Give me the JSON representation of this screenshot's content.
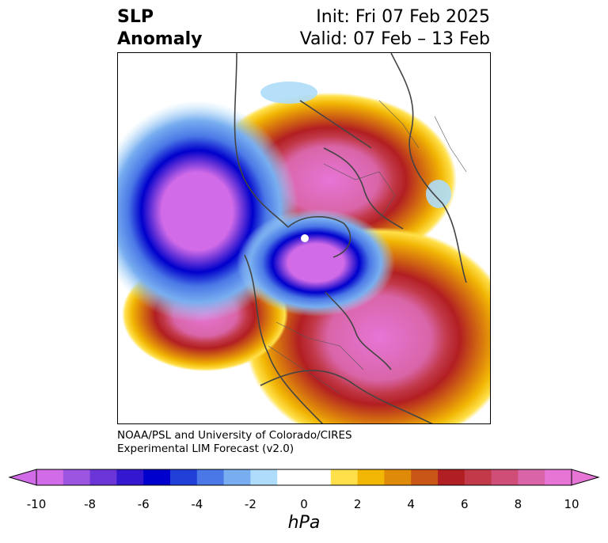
{
  "title": {
    "left_line1": "SLP",
    "left_line2": "Anomaly",
    "right_line1": "Init: Fri 07 Feb 2025",
    "right_line2": "Valid: 07 Feb – 13 Feb"
  },
  "credit": {
    "line1": "NOAA/PSL and University of Colorado/CIRES",
    "line2": "Experimental LIM Forecast (v2.0)"
  },
  "colorbar": {
    "unit": "hPa",
    "ticks": [
      "-10",
      "-8",
      "-6",
      "-4",
      "-2",
      "0",
      "2",
      "4",
      "6",
      "8",
      "10"
    ],
    "colors": [
      "#d26be8",
      "#9b55e0",
      "#6b35d8",
      "#3418d0",
      "#0000cc",
      "#2040d8",
      "#4a78e6",
      "#78aef0",
      "#aedcfa",
      "#ffffff",
      "#ffffff",
      "#ffe04a",
      "#f2b705",
      "#e08a0a",
      "#c95516",
      "#b21f22",
      "#c2394a",
      "#cf4e78",
      "#d965a8",
      "#e675d6"
    ],
    "under_color": "#d26be8",
    "over_color": "#e675d6"
  },
  "map": {
    "projection": "north polar stereographic",
    "anomalies": [
      {
        "sign": "negative",
        "region": "North Pacific / Gulf of Alaska",
        "peak_hpa": -10
      },
      {
        "sign": "negative",
        "region": "Arctic / Canadian Archipelago",
        "peak_hpa": -10
      },
      {
        "sign": "positive",
        "region": "Siberia / Northern Asia",
        "peak_hpa": 10
      },
      {
        "sign": "positive",
        "region": "North Atlantic / Western Europe",
        "peak_hpa": 10
      },
      {
        "sign": "positive",
        "region": "Subtropical North Pacific",
        "peak_hpa": 10
      }
    ]
  }
}
